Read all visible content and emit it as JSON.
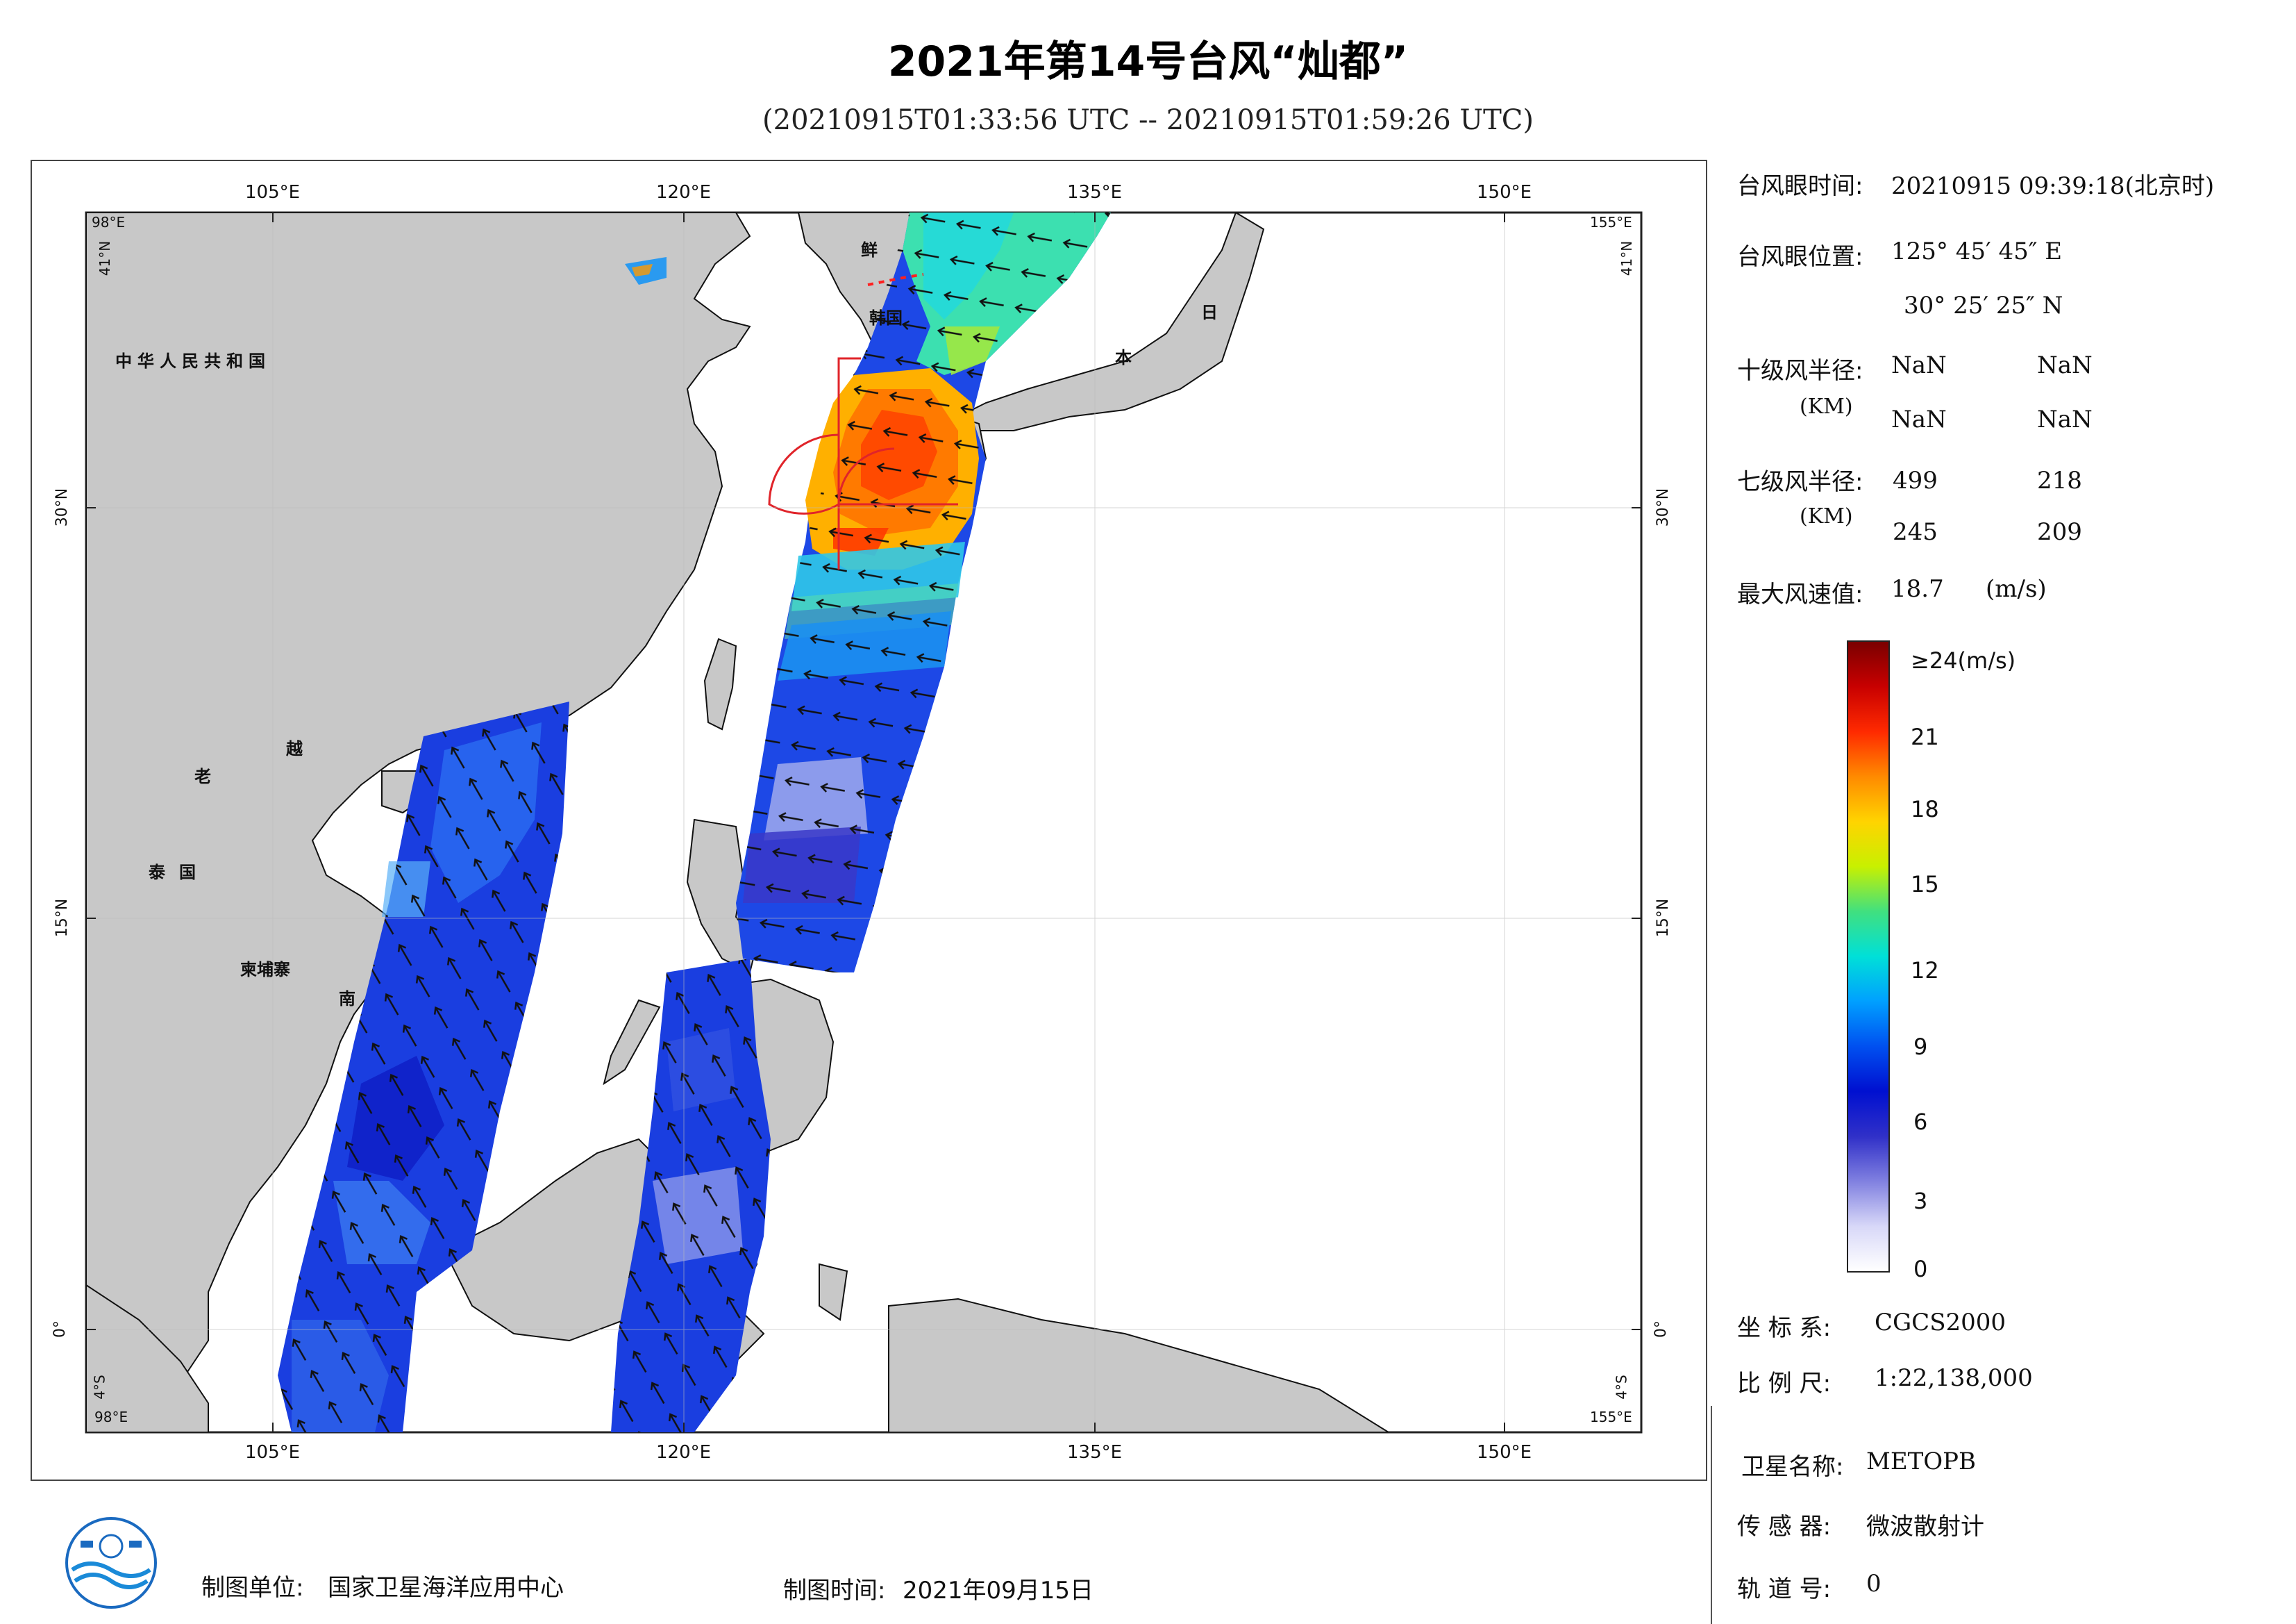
{
  "header": {
    "title": "2021年第14号台风“灿都”",
    "subtitle": "(20210915T01:33:56 UTC -- 20210915T01:59:26 UTC)"
  },
  "map": {
    "top_ticks": [
      "105°E",
      "120°E",
      "135°E",
      "150°E"
    ],
    "bottom_ticks": [
      "105°E",
      "120°E",
      "135°E",
      "150°E"
    ],
    "left_ticks": [
      "30°N",
      "15°N",
      "0°"
    ],
    "right_ticks": [
      "30°N",
      "15°N",
      "0°"
    ],
    "corner_tl_lon": "98°E",
    "corner_tl_lat": "41°N",
    "corner_tr_lon": "155°E",
    "corner_tr_lat": "41°N",
    "corner_bl_lat": "4°S",
    "corner_bl_lon": "98°E",
    "corner_br_lat": "4°S",
    "corner_br_lon": "155°E",
    "countries": {
      "china": "中华人民共和国",
      "dprk": "鲜",
      "korea": "韩国",
      "japan_1": "日",
      "japan_2": "本",
      "laos": "老",
      "vietnam_1": "越",
      "vietnam_2": "南",
      "thailand": "泰国",
      "cambodia": "柬埔寨"
    },
    "colors": {
      "land": "#c8c8c8",
      "sea": "#ffffff",
      "coast": "#000000",
      "storm_circle": "#e0242a"
    }
  },
  "info_panel": {
    "eye_time_label": "台风眼时间:",
    "eye_time_value": "20210915 09:39:18(北京时)",
    "eye_pos_label": "台风眼位置:",
    "eye_pos_lon": "125° 45′ 45″ E",
    "eye_pos_lat": "30° 25′ 25″ N",
    "r10_label": "十级风半径:",
    "r10_unit": "(KM)",
    "r10_values": [
      "NaN",
      "NaN",
      "NaN",
      "NaN"
    ],
    "r7_label": "七级风半径:",
    "r7_unit": "(KM)",
    "r7_values": [
      "499",
      "218",
      "245",
      "209"
    ],
    "max_wind_label": "最大风速值:",
    "max_wind_value": "18.7",
    "max_wind_unit": "(m/s)"
  },
  "colorbar": {
    "labels": [
      "≥24(m/s)",
      "21",
      "18",
      "15",
      "12",
      "9",
      "6",
      "3",
      "0"
    ],
    "stops": [
      "#7a0000",
      "#c80000",
      "#ff2a00",
      "#ff8a00",
      "#ffd400",
      "#c8f000",
      "#40e080",
      "#00e0d8",
      "#00a0ff",
      "#0050f0",
      "#0010d0",
      "#3030c8",
      "#8080e0",
      "#d8d8f8",
      "#ffffff"
    ]
  },
  "meta": {
    "crs_label": "坐 标 系:",
    "crs_value": "CGCS2000",
    "scale_label": "比 例 尺:",
    "scale_value": "1:22,138,000",
    "satellite_label": "卫星名称:",
    "satellite_value": "METOPB",
    "sensor_label": "传 感 器:",
    "sensor_value": "微波散射计",
    "orbit_label": "轨 道 号:",
    "orbit_value": "0"
  },
  "footer": {
    "unit_label": "制图单位:",
    "unit_value": "国家卫星海洋应用中心",
    "date_label": "制图时间:",
    "date_value": "2021年09月15日"
  }
}
